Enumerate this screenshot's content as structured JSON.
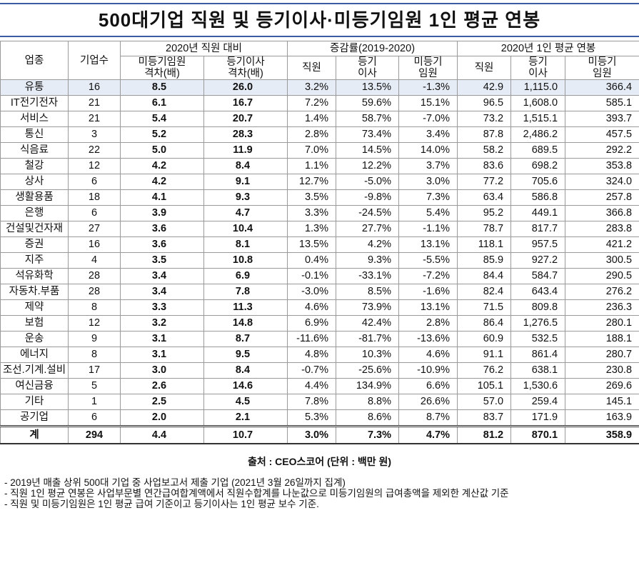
{
  "title": "500대기업 직원 및 등기이사·미등기임원 1인 평균 연봉",
  "table": {
    "header_fixed": [
      "업종",
      "기업수"
    ],
    "header_groups": [
      "2020년 직원 대비",
      "증감률(2019-2020)",
      "2020년 1인 평균 연봉"
    ],
    "header_columns": [
      "미등기임원\n격차(배)",
      "등기이사\n격차(배)",
      "직원",
      "등기\n이사",
      "미등기\n임원",
      "직원",
      "등기\n이사",
      "미등기\n임원"
    ],
    "rows": [
      [
        "유통",
        "16",
        "8.5",
        "26.0",
        "3.2%",
        "13.5%",
        "-1.3%",
        "42.9",
        "1,115.0",
        "366.4"
      ],
      [
        "IT전기전자",
        "21",
        "6.1",
        "16.7",
        "7.2%",
        "59.6%",
        "15.1%",
        "96.5",
        "1,608.0",
        "585.1"
      ],
      [
        "서비스",
        "21",
        "5.4",
        "20.7",
        "1.4%",
        "58.7%",
        "-7.0%",
        "73.2",
        "1,515.1",
        "393.7"
      ],
      [
        "통신",
        "3",
        "5.2",
        "28.3",
        "2.8%",
        "73.4%",
        "3.4%",
        "87.8",
        "2,486.2",
        "457.5"
      ],
      [
        "식음료",
        "22",
        "5.0",
        "11.9",
        "7.0%",
        "14.5%",
        "14.0%",
        "58.2",
        "689.5",
        "292.2"
      ],
      [
        "철강",
        "12",
        "4.2",
        "8.4",
        "1.1%",
        "12.2%",
        "3.7%",
        "83.6",
        "698.2",
        "353.8"
      ],
      [
        "상사",
        "6",
        "4.2",
        "9.1",
        "12.7%",
        "-5.0%",
        "3.0%",
        "77.2",
        "705.6",
        "324.0"
      ],
      [
        "생활용품",
        "18",
        "4.1",
        "9.3",
        "3.5%",
        "-9.8%",
        "7.3%",
        "63.4",
        "586.8",
        "257.8"
      ],
      [
        "은행",
        "6",
        "3.9",
        "4.7",
        "3.3%",
        "-24.5%",
        "5.4%",
        "95.2",
        "449.1",
        "366.8"
      ],
      [
        "건설및건자재",
        "27",
        "3.6",
        "10.4",
        "1.3%",
        "27.7%",
        "-1.1%",
        "78.7",
        "817.7",
        "283.8"
      ],
      [
        "증권",
        "16",
        "3.6",
        "8.1",
        "13.5%",
        "4.2%",
        "13.1%",
        "118.1",
        "957.5",
        "421.2"
      ],
      [
        "지주",
        "4",
        "3.5",
        "10.8",
        "0.4%",
        "9.3%",
        "-5.5%",
        "85.9",
        "927.2",
        "300.5"
      ],
      [
        "석유화학",
        "28",
        "3.4",
        "6.9",
        "-0.1%",
        "-33.1%",
        "-7.2%",
        "84.4",
        "584.7",
        "290.5"
      ],
      [
        "자동차.부품",
        "28",
        "3.4",
        "7.8",
        "-3.0%",
        "8.5%",
        "-1.6%",
        "82.4",
        "643.4",
        "276.2"
      ],
      [
        "제약",
        "8",
        "3.3",
        "11.3",
        "4.6%",
        "73.9%",
        "13.1%",
        "71.5",
        "809.8",
        "236.3"
      ],
      [
        "보험",
        "12",
        "3.2",
        "14.8",
        "6.9%",
        "42.4%",
        "2.8%",
        "86.4",
        "1,276.5",
        "280.1"
      ],
      [
        "운송",
        "9",
        "3.1",
        "8.7",
        "-11.6%",
        "-81.7%",
        "-13.6%",
        "60.9",
        "532.5",
        "188.1"
      ],
      [
        "에너지",
        "8",
        "3.1",
        "9.5",
        "4.8%",
        "10.3%",
        "4.6%",
        "91.1",
        "861.4",
        "280.7"
      ],
      [
        "조선.기계.설비",
        "17",
        "3.0",
        "8.4",
        "-0.7%",
        "-25.6%",
        "-10.9%",
        "76.2",
        "638.1",
        "230.8"
      ],
      [
        "여신금융",
        "5",
        "2.6",
        "14.6",
        "4.4%",
        "134.9%",
        "6.6%",
        "105.1",
        "1,530.6",
        "269.6"
      ],
      [
        "기타",
        "1",
        "2.5",
        "4.5",
        "7.8%",
        "8.8%",
        "26.6%",
        "57.0",
        "259.4",
        "145.1"
      ],
      [
        "공기업",
        "6",
        "2.0",
        "2.1",
        "5.3%",
        "8.6%",
        "8.7%",
        "83.7",
        "171.9",
        "163.9"
      ]
    ],
    "total": [
      "계",
      "294",
      "4.4",
      "10.7",
      "3.0%",
      "7.3%",
      "4.7%",
      "81.2",
      "870.1",
      "358.9"
    ]
  },
  "source": "출처 : CEO스코어 (단위 : 백만 원)",
  "notes": [
    "- 2019년 매출 상위 500대 기업 중 사업보고서 제출 기업 (2021년 3월 26일까지 집계)",
    "- 직원 1인 평균 연봉은 사업부문별 연간급여합계액에서 직원수합계를 나눈값으로 미등기임원의 급여총액을 제외한 계산값 기준",
    "- 직원 및 미등기임원은 1인 평균 급여 기준이고 등기이사는 1인 평균 보수 기준."
  ]
}
